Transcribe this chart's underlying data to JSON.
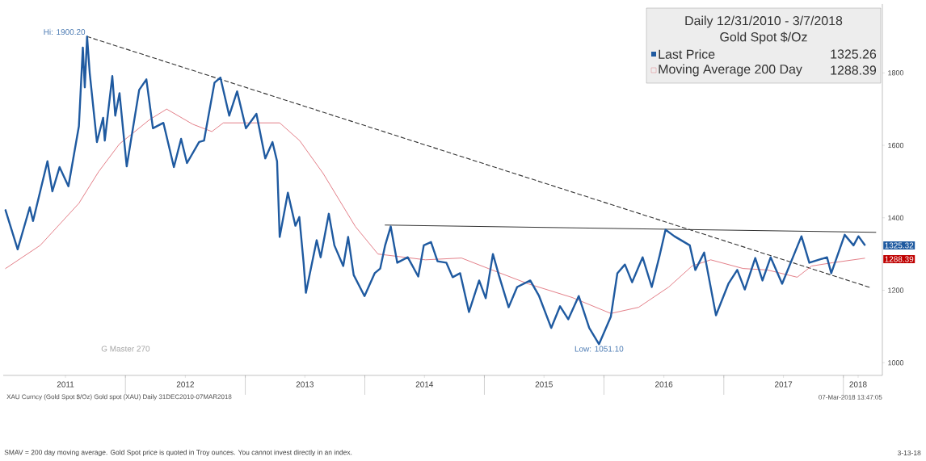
{
  "chart_data": {
    "type": "line",
    "title": "Daily 12/31/2010 - 3/7/2018",
    "subtitle": "Gold Spot $/Oz",
    "xlim": [
      "2010-12-24",
      "2018-04-30"
    ],
    "xticks": [
      {
        "value": "2011-07-02",
        "label": "2011"
      },
      {
        "value": "2012-01-01",
        "label": null
      },
      {
        "value": "2012-07-02",
        "label": "2012"
      },
      {
        "value": "2013-01-01",
        "label": null
      },
      {
        "value": "2013-07-02",
        "label": "2013"
      },
      {
        "value": "2014-01-01",
        "label": null
      },
      {
        "value": "2014-07-02",
        "label": "2014"
      },
      {
        "value": "2015-01-01",
        "label": null
      },
      {
        "value": "2015-07-02",
        "label": "2015"
      },
      {
        "value": "2016-01-01",
        "label": null
      },
      {
        "value": "2016-07-02",
        "label": "2016"
      },
      {
        "value": "2017-01-01",
        "label": null
      },
      {
        "value": "2017-07-02",
        "label": "2017"
      },
      {
        "value": "2018-01-01",
        "label": null
      },
      {
        "value": "2018-02-15",
        "label": "2018"
      }
    ],
    "ylim": [
      965,
      1990
    ],
    "yticks": [
      1000,
      1200,
      1400,
      1600,
      1800
    ],
    "grid": false,
    "legend": "top right",
    "marker": "none",
    "series": [
      {
        "name": "Last Price",
        "color": "#1f5aa0",
        "line_style": "solid",
        "x": [
          "2010-12-31",
          "2011-02-06",
          "2011-03-15",
          "2011-03-25",
          "2011-05-08",
          "2011-05-23",
          "2011-06-14",
          "2011-07-11",
          "2011-08-12",
          "2011-08-24",
          "2011-08-30",
          "2011-09-06",
          "2011-09-14",
          "2011-10-06",
          "2011-10-25",
          "2011-10-30",
          "2011-11-22",
          "2011-12-01",
          "2011-12-14",
          "2012-01-05",
          "2012-02-12",
          "2012-03-05",
          "2012-03-25",
          "2012-04-26",
          "2012-05-28",
          "2012-06-19",
          "2012-07-07",
          "2012-08-13",
          "2012-08-28",
          "2012-09-29",
          "2012-10-17",
          "2012-11-13",
          "2012-12-07",
          "2013-01-03",
          "2013-02-04",
          "2013-03-03",
          "2013-03-25",
          "2013-04-08",
          "2013-04-16",
          "2013-05-11",
          "2013-06-03",
          "2013-06-15",
          "2013-06-28",
          "2013-07-05",
          "2013-08-07",
          "2013-08-19",
          "2013-09-13",
          "2013-09-30",
          "2013-10-27",
          "2013-11-11",
          "2013-11-28",
          "2013-12-31",
          "2014-01-31",
          "2014-02-17",
          "2014-03-04",
          "2014-03-21",
          "2014-04-10",
          "2014-05-12",
          "2014-06-13",
          "2014-06-30",
          "2014-07-22",
          "2014-08-11",
          "2014-09-07",
          "2014-09-26",
          "2014-10-19",
          "2014-11-15",
          "2014-12-16",
          "2015-01-05",
          "2015-01-27",
          "2015-02-14",
          "2015-03-16",
          "2015-04-11",
          "2015-05-21",
          "2015-06-17",
          "2015-07-24",
          "2015-08-20",
          "2015-09-14",
          "2015-10-16",
          "2015-11-17",
          "2015-12-17",
          "2016-01-22",
          "2016-02-11",
          "2016-03-05",
          "2016-03-27",
          "2016-04-28",
          "2016-05-26",
          "2016-06-19",
          "2016-07-07",
          "2016-08-03",
          "2016-09-19",
          "2016-10-06",
          "2016-11-02",
          "2016-12-08",
          "2017-01-15",
          "2017-02-11",
          "2017-03-06",
          "2017-04-07",
          "2017-04-29",
          "2017-05-24",
          "2017-06-28",
          "2017-08-26",
          "2017-09-19",
          "2017-11-12",
          "2017-11-25",
          "2018-01-05",
          "2018-02-01",
          "2018-02-16",
          "2018-03-07"
        ],
        "values": [
          1421,
          1313,
          1429,
          1391,
          1556,
          1473,
          1540,
          1487,
          1653,
          1870,
          1760,
          1900.2,
          1800,
          1609,
          1676,
          1613,
          1791,
          1682,
          1744,
          1542,
          1753,
          1782,
          1647,
          1662,
          1540,
          1618,
          1551,
          1609,
          1613,
          1773,
          1787,
          1682,
          1749,
          1647,
          1687,
          1564,
          1609,
          1556,
          1347,
          1469,
          1378,
          1402,
          1276,
          1193,
          1338,
          1291,
          1411,
          1324,
          1267,
          1347,
          1242,
          1184,
          1247,
          1260,
          1324,
          1376,
          1276,
          1291,
          1238,
          1324,
          1333,
          1280,
          1276,
          1236,
          1247,
          1140,
          1227,
          1178,
          1300,
          1242,
          1153,
          1209,
          1227,
          1184,
          1096,
          1156,
          1120,
          1184,
          1096,
          1051.1,
          1127,
          1247,
          1271,
          1222,
          1291,
          1209,
          1296,
          1367,
          1349,
          1324,
          1256,
          1304,
          1131,
          1218,
          1256,
          1202,
          1289,
          1227,
          1291,
          1218,
          1349,
          1276,
          1291,
          1247,
          1353,
          1324,
          1349,
          1325.26
        ]
      },
      {
        "name": "Moving Average 200 Day",
        "color": "#e0707a",
        "line_style": "solid",
        "x": [
          "2010-12-31",
          "2011-04-16",
          "2011-08-12",
          "2011-10-11",
          "2011-12-14",
          "2012-03-15",
          "2012-05-06",
          "2012-07-25",
          "2012-09-21",
          "2012-10-26",
          "2013-04-16",
          "2013-06-16",
          "2013-08-27",
          "2013-12-03",
          "2014-02-10",
          "2014-07-05",
          "2014-10-23",
          "2015-01-13",
          "2015-05-14",
          "2015-09-26",
          "2016-01-22",
          "2016-04-16",
          "2016-07-17",
          "2016-09-26",
          "2016-11-22",
          "2017-03-01",
          "2017-05-14",
          "2017-08-13",
          "2017-09-26",
          "2017-11-29",
          "2018-03-07"
        ],
        "values": [
          1260,
          1324,
          1440,
          1527,
          1604,
          1671,
          1700,
          1658,
          1638,
          1662,
          1662,
          1613,
          1522,
          1376,
          1300,
          1284,
          1289,
          1260,
          1218,
          1180,
          1136,
          1153,
          1209,
          1267,
          1284,
          1260,
          1256,
          1236,
          1267,
          1276,
          1288.39
        ]
      },
      {
        "color": "#333333",
        "line_style": "dashed",
        "x": [
          "2011-09-06",
          "2018-03-26"
        ],
        "values": [
          1900.2,
          1207
        ]
      },
      {
        "color": "#333333",
        "line_style": "solid",
        "x": [
          "2014-03-04",
          "2018-04-10"
        ],
        "values": [
          1380,
          1360
        ]
      }
    ],
    "annotations": [
      "1325.26",
      "1288.39",
      {
        "text": "Hi: 1900.20",
        "x": "2011-09-06",
        "y": 1900.2
      },
      {
        "text": "Low: 1051.10",
        "x": "2015-12-17",
        "y": 1051.1
      },
      "G Master 270",
      "XAU Curncy (Gold Spot $/Oz) Gold spot (XAU) Daily 31DEC2010-07MAR2018",
      "07-Mar-2018 13:47:05",
      "SMAV = 200 day moving average. Gold Spot price is quoted in Troy ounces. You cannot invest directly in an index.",
      "3-13-18",
      "1325.32",
      "1288.39"
    ]
  }
}
